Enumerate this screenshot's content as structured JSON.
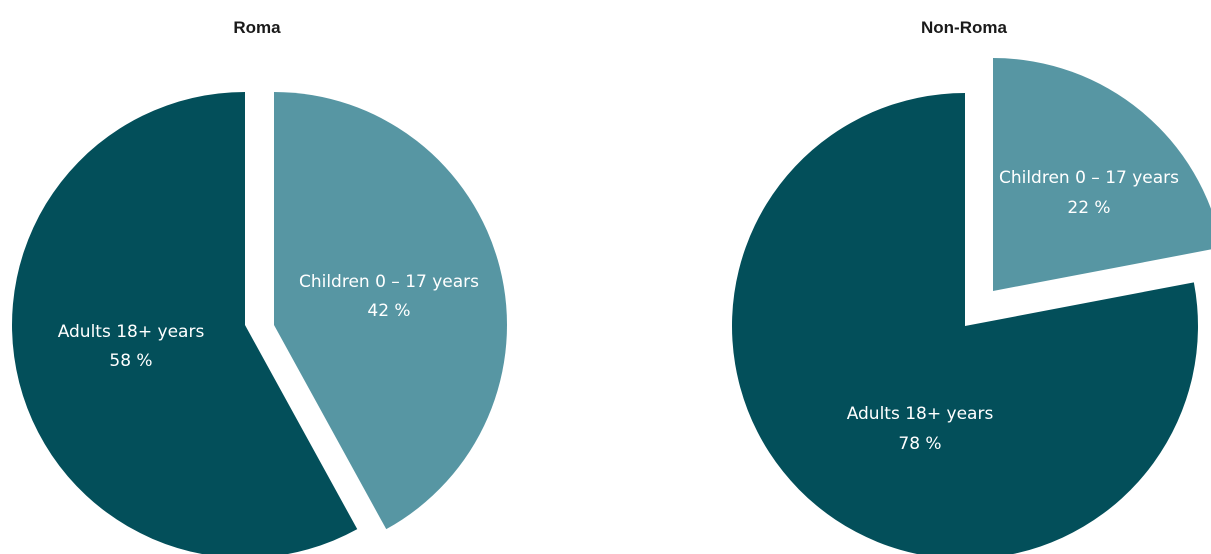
{
  "chart_data": [
    {
      "type": "pie",
      "title": "Roma",
      "slices": [
        {
          "label": "Children 0 – 17 years",
          "value": 42,
          "value_label": "42 %",
          "color": "#5796a3"
        },
        {
          "label": "Adults 18+ years",
          "value": 58,
          "value_label": "58 %",
          "color": "#034f5a"
        }
      ]
    },
    {
      "type": "pie",
      "title": "Non-Roma",
      "slices": [
        {
          "label": "Children 0 – 17 years",
          "value": 22,
          "value_label": "22 %",
          "color": "#5796a3"
        },
        {
          "label": "Adults 18+ years",
          "value": 78,
          "value_label": "78 %",
          "color": "#034f5a"
        }
      ]
    }
  ]
}
